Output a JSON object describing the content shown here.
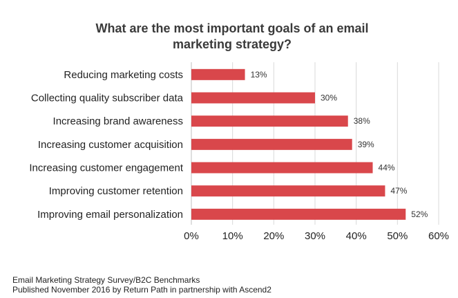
{
  "chart_data": {
    "type": "bar",
    "orientation": "horizontal",
    "title_lines": [
      "What are the most important goals of an email",
      "marketing strategy?"
    ],
    "categories": [
      "Reducing marketing costs",
      "Collecting quality subscriber data",
      "Increasing brand awareness",
      "Increasing customer acquisition",
      "Increasing customer engagement",
      "Improving customer retention",
      "Improving email personalization"
    ],
    "values": [
      13,
      30,
      38,
      39,
      44,
      47,
      52
    ],
    "data_labels": [
      "13%",
      "30%",
      "38%",
      "39%",
      "44%",
      "47%",
      "52%"
    ],
    "xlim": [
      0,
      60
    ],
    "x_ticks": [
      "0%",
      "10%",
      "20%",
      "30%",
      "40%",
      "50%",
      "60%"
    ],
    "bar_color": "#d9474b",
    "grid": true
  },
  "footer": {
    "line1": "Email Marketing Strategy Survey/B2C Benchmarks",
    "line2": "Published November 2016 by Return Path in partnership with Ascend2"
  }
}
